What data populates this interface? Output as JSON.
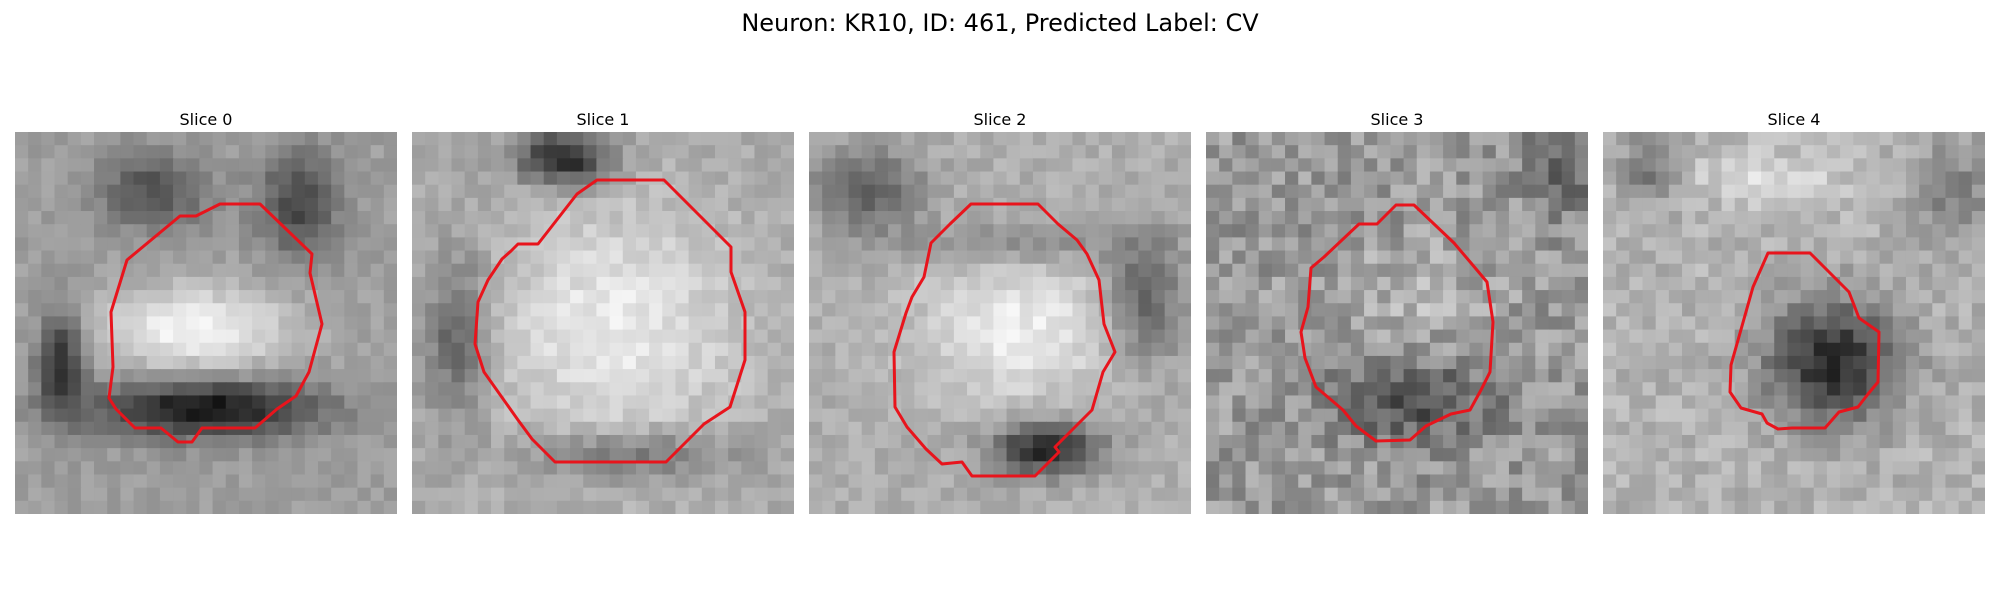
{
  "figure": {
    "title": "Neuron: KR10, ID: 461, Predicted Label: CV"
  },
  "panels": [
    {
      "title": "Slice 0",
      "pattern": "bright-oval-dark-bottom",
      "contour_color": "#e8141c"
    },
    {
      "title": "Slice 1",
      "pattern": "large-bright-disk",
      "contour_color": "#e8141c"
    },
    {
      "title": "Slice 2",
      "pattern": "bright-disk-dark-ring",
      "contour_color": "#e8141c"
    },
    {
      "title": "Slice 3",
      "pattern": "noisy-mid-disk",
      "contour_color": "#e8141c"
    },
    {
      "title": "Slice 4",
      "pattern": "small-dark-disk",
      "contour_color": "#e8141c"
    }
  ]
}
